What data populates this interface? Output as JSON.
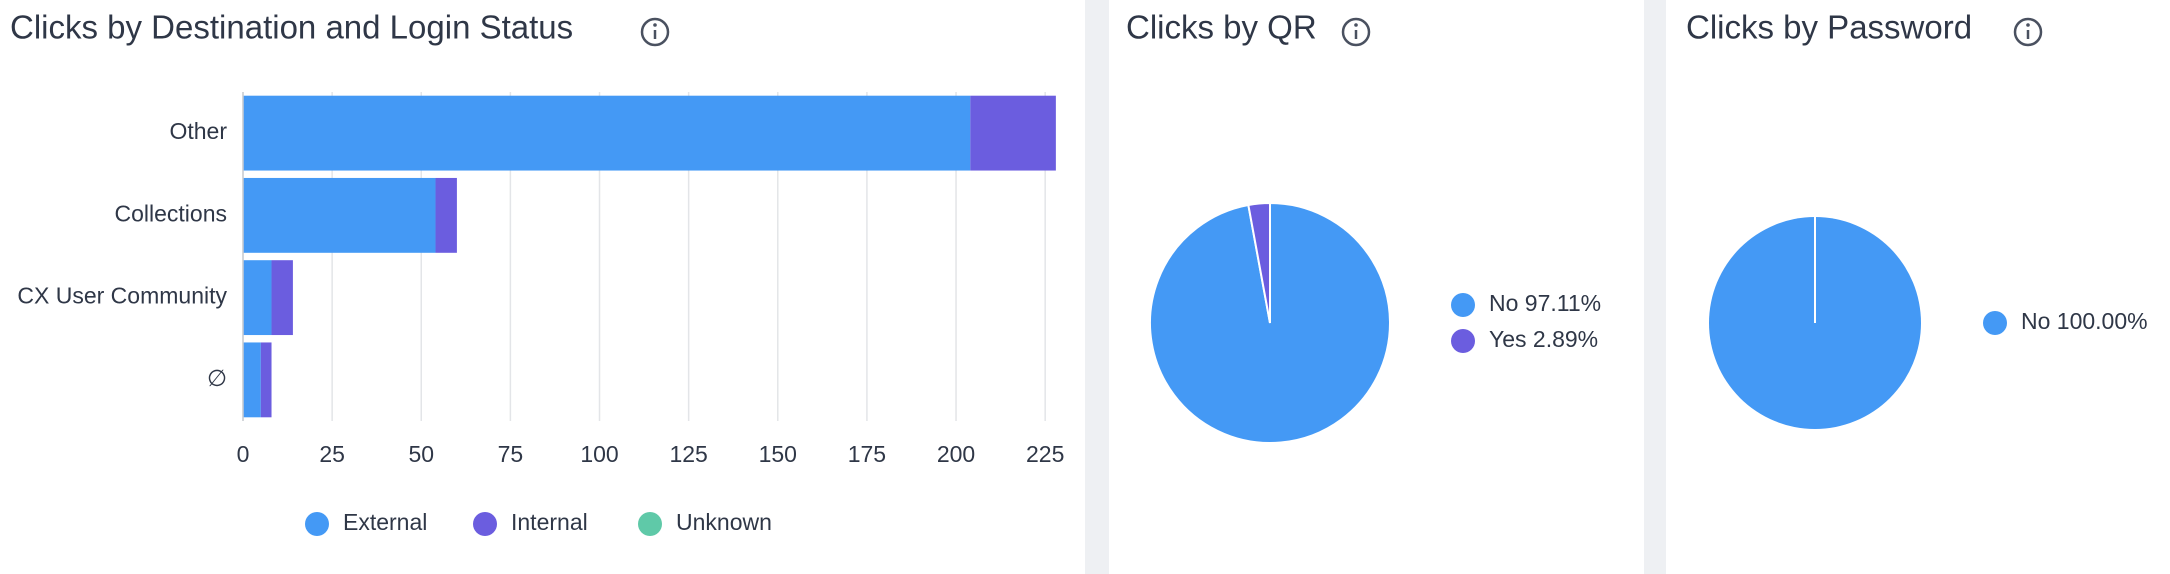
{
  "chart_data": [
    {
      "type": "hbar_stacked",
      "title": "Clicks by Destination and Login Status",
      "categories": [
        "Other",
        "Collections",
        "CX User Community",
        "∅"
      ],
      "series": [
        {
          "name": "External",
          "color": "#4499f5",
          "values": [
            204,
            54,
            8,
            5
          ]
        },
        {
          "name": "Internal",
          "color": "#6b5ddf",
          "values": [
            24,
            6,
            6,
            3
          ]
        },
        {
          "name": "Unknown",
          "color": "#5fc9a8",
          "values": [
            0,
            0,
            0,
            0
          ]
        }
      ],
      "xlim": [
        0,
        230
      ],
      "xticks": [
        0,
        25,
        50,
        75,
        100,
        125,
        150,
        175,
        200,
        225
      ],
      "grid": true
    },
    {
      "type": "pie",
      "title": "Clicks by QR",
      "categories": [
        "No",
        "Yes"
      ],
      "values": [
        97.11,
        2.89
      ],
      "value_labels": [
        "97.11%",
        "2.89%"
      ],
      "colors": [
        "#4499f5",
        "#6b5ddf"
      ]
    },
    {
      "type": "pie",
      "title": "Clicks by Password",
      "categories": [
        "No"
      ],
      "values": [
        100
      ],
      "value_labels": [
        "100.00%"
      ],
      "colors": [
        "#4499f5"
      ]
    }
  ]
}
